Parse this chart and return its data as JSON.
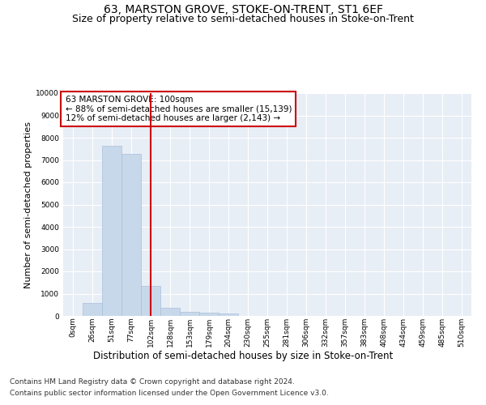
{
  "title": "63, MARSTON GROVE, STOKE-ON-TRENT, ST1 6EF",
  "subtitle": "Size of property relative to semi-detached houses in Stoke-on-Trent",
  "xlabel": "Distribution of semi-detached houses by size in Stoke-on-Trent",
  "ylabel": "Number of semi-detached properties",
  "categories": [
    "0sqm",
    "26sqm",
    "51sqm",
    "77sqm",
    "102sqm",
    "128sqm",
    "153sqm",
    "179sqm",
    "204sqm",
    "230sqm",
    "255sqm",
    "281sqm",
    "306sqm",
    "332sqm",
    "357sqm",
    "383sqm",
    "408sqm",
    "434sqm",
    "459sqm",
    "485sqm",
    "510sqm"
  ],
  "bar_values": [
    0,
    600,
    7650,
    7280,
    1350,
    360,
    200,
    150,
    120,
    0,
    0,
    0,
    0,
    0,
    0,
    0,
    0,
    0,
    0,
    0,
    0
  ],
  "bar_color": "#c8d8eb",
  "bar_edge_color": "#a8c0d8",
  "vline_color": "#cc0000",
  "vline_index": 4,
  "annotation_text": "63 MARSTON GROVE: 100sqm\n← 88% of semi-detached houses are smaller (15,139)\n12% of semi-detached houses are larger (2,143) →",
  "annotation_box_color": "#ffffff",
  "annotation_box_edge": "#cc0000",
  "ylim": [
    0,
    10000
  ],
  "yticks": [
    0,
    1000,
    2000,
    3000,
    4000,
    5000,
    6000,
    7000,
    8000,
    9000,
    10000
  ],
  "plot_bg_color": "#e8eef6",
  "grid_color": "#ffffff",
  "footer_line1": "Contains HM Land Registry data © Crown copyright and database right 2024.",
  "footer_line2": "Contains public sector information licensed under the Open Government Licence v3.0.",
  "title_fontsize": 10,
  "subtitle_fontsize": 9,
  "xlabel_fontsize": 8.5,
  "ylabel_fontsize": 8,
  "tick_fontsize": 6.5,
  "annotation_fontsize": 7.5,
  "footer_fontsize": 6.5
}
